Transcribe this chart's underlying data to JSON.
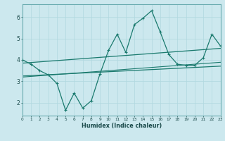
{
  "xlabel": "Humidex (Indice chaleur)",
  "bg_color": "#cce8ee",
  "line_color": "#1a7a6e",
  "x_data": [
    0,
    1,
    2,
    3,
    4,
    5,
    6,
    7,
    8,
    9,
    10,
    11,
    12,
    13,
    14,
    15,
    16,
    17,
    18,
    19,
    20,
    21,
    22,
    23
  ],
  "y_main": [
    4.0,
    3.8,
    3.5,
    3.3,
    2.9,
    1.65,
    2.45,
    1.75,
    2.1,
    3.35,
    4.45,
    5.2,
    4.35,
    5.65,
    5.95,
    6.3,
    5.3,
    4.25,
    3.8,
    3.75,
    3.75,
    4.1,
    5.2,
    4.65
  ],
  "y_reg1": [
    3.85,
    3.88,
    3.91,
    3.94,
    3.97,
    4.0,
    4.03,
    4.06,
    4.09,
    4.12,
    4.15,
    4.18,
    4.21,
    4.24,
    4.27,
    4.3,
    4.33,
    4.36,
    4.39,
    4.42,
    4.45,
    4.48,
    4.51,
    4.54
  ],
  "y_reg2": [
    3.25,
    3.27,
    3.29,
    3.31,
    3.33,
    3.35,
    3.37,
    3.39,
    3.41,
    3.43,
    3.45,
    3.47,
    3.49,
    3.51,
    3.53,
    3.55,
    3.57,
    3.59,
    3.61,
    3.63,
    3.65,
    3.67,
    3.69,
    3.71
  ],
  "y_reg3": [
    3.2,
    3.23,
    3.26,
    3.29,
    3.32,
    3.35,
    3.38,
    3.41,
    3.44,
    3.47,
    3.5,
    3.53,
    3.56,
    3.59,
    3.62,
    3.65,
    3.68,
    3.71,
    3.74,
    3.77,
    3.8,
    3.83,
    3.86,
    3.89
  ],
  "ylim": [
    1.4,
    6.6
  ],
  "xlim": [
    0,
    23
  ],
  "yticks": [
    2,
    3,
    4,
    5,
    6
  ],
  "xticks": [
    0,
    1,
    2,
    3,
    4,
    5,
    6,
    7,
    8,
    9,
    10,
    11,
    12,
    13,
    14,
    15,
    16,
    17,
    18,
    19,
    20,
    21,
    22,
    23
  ],
  "grid_color": "#b0d8df",
  "spine_color": "#6aacb0",
  "tick_color": "#1a4a4a"
}
